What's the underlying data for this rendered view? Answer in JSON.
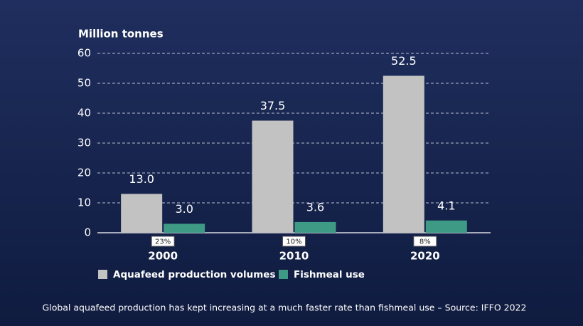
{
  "chart_data": {
    "type": "bar",
    "y_label": "Million tonnes",
    "categories": [
      "2000",
      "2010",
      "2020"
    ],
    "series": [
      {
        "name": "Aquafeed production volumes",
        "color": "#c2c2c2",
        "values": [
          13.0,
          37.5,
          52.5
        ],
        "value_labels": [
          "13.0",
          "37.5",
          "52.5"
        ]
      },
      {
        "name": "Fishmeal use",
        "color": "#3f9a85",
        "values": [
          3.0,
          3.6,
          4.1
        ],
        "value_labels": [
          "3.0",
          "3.6",
          "4.1"
        ]
      }
    ],
    "share_labels": [
      "23%",
      "10%",
      "8%"
    ],
    "ylim": [
      0,
      60
    ],
    "yticks": [
      0,
      10,
      20,
      30,
      40,
      50,
      60
    ],
    "grid": true,
    "caption": "Global aquafeed production has kept increasing at a much faster rate than fishmeal use – Source: IFFO 2022"
  }
}
